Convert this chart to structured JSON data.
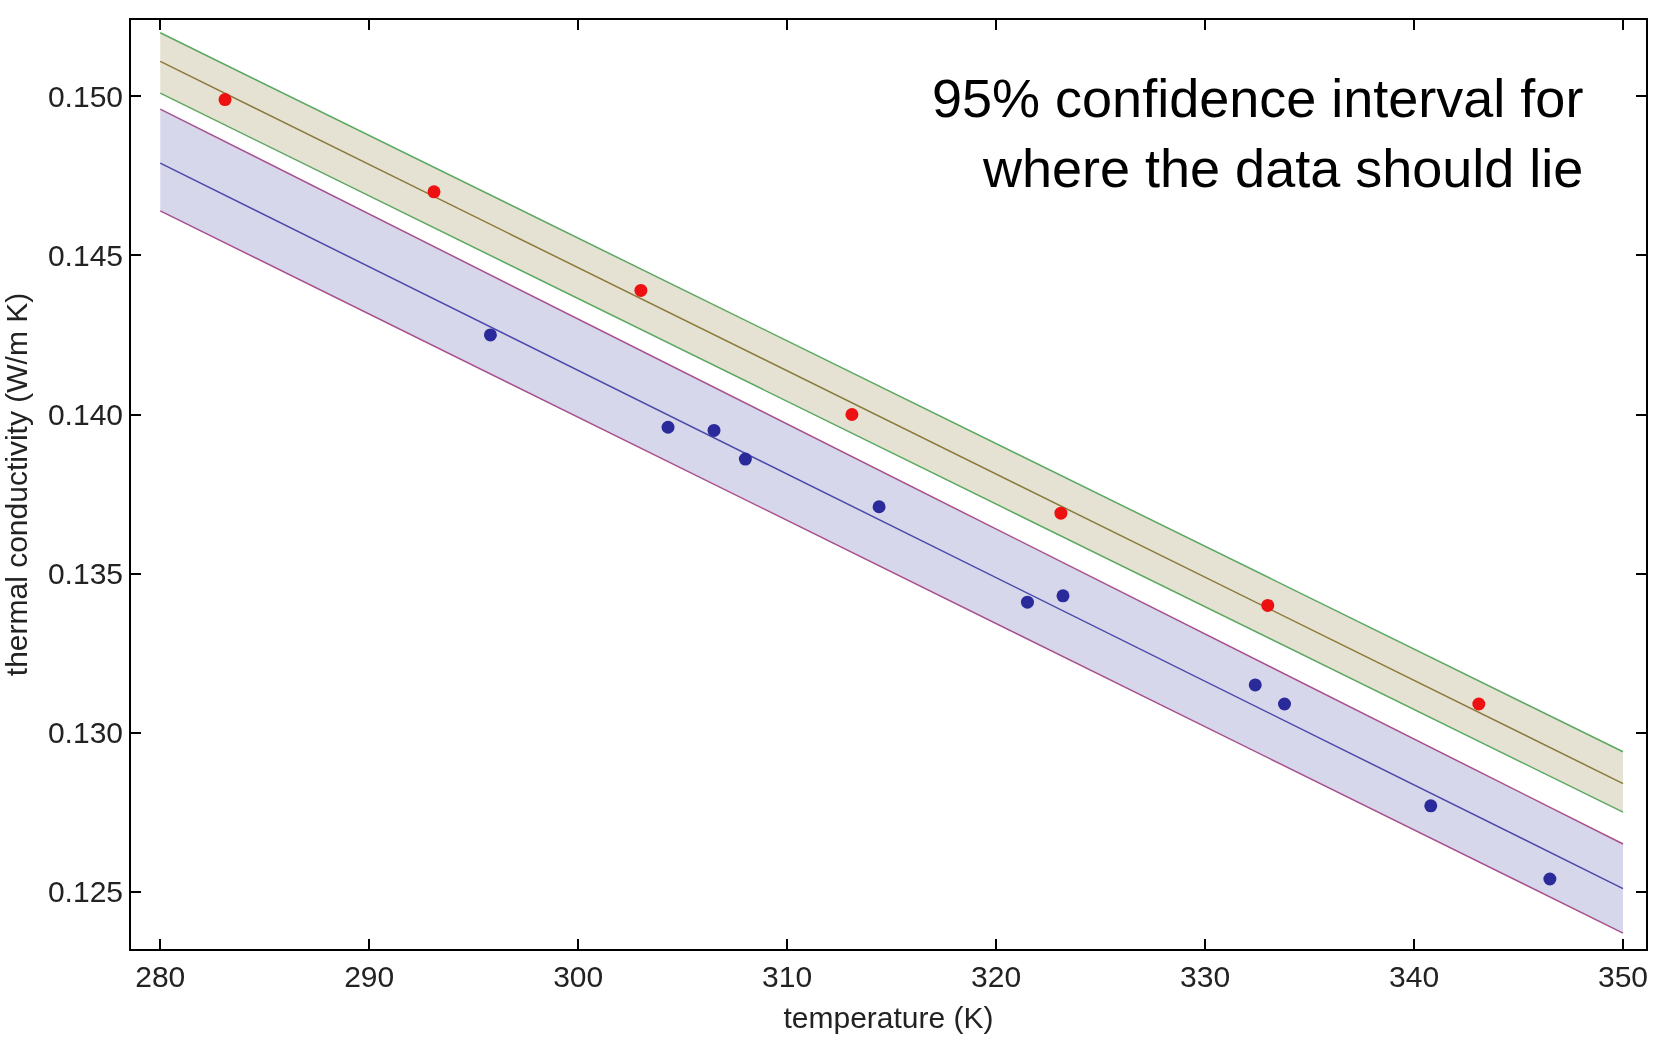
{
  "chart_data": {
    "type": "scatter",
    "xlabel": "temperature (K)",
    "ylabel": "thermal conductivity (W/m K)",
    "annotations": [
      "95% confidence interval for\nwhere the data should lie"
    ],
    "series": [
      {
        "type": "line",
        "marker": "none",
        "color": "#8a7a3a",
        "x": [
          280,
          350
        ],
        "values": [
          0.1511,
          0.1284
        ],
        "lower": [
          0.1501,
          0.1275
        ],
        "upper": [
          0.152,
          0.1294
        ]
      },
      {
        "type": "line",
        "marker": "none",
        "color": "#4a4aa8",
        "x": [
          280,
          350
        ],
        "values": [
          0.1479,
          0.1251
        ],
        "lower": [
          0.1464,
          0.1237
        ],
        "upper": [
          0.1496,
          0.1265
        ]
      },
      {
        "type": "line",
        "marker": "none",
        "color": "#5aa860",
        "x": [
          280,
          350
        ],
        "values": [
          0.152,
          0.1294
        ]
      },
      {
        "type": "line",
        "marker": "none",
        "color": "#5aa860",
        "x": [
          280,
          350
        ],
        "values": [
          0.1501,
          0.1275
        ]
      },
      {
        "type": "line",
        "marker": "none",
        "color": "#a8508c",
        "x": [
          280,
          350
        ],
        "values": [
          0.1496,
          0.1265
        ]
      },
      {
        "type": "line",
        "marker": "none",
        "color": "#a8508c",
        "x": [
          280,
          350
        ],
        "values": [
          0.1464,
          0.1237
        ]
      },
      {
        "color": "#ee1111",
        "x": [
          283.1,
          293.1,
          303.0,
          313.1,
          323.1,
          333.0,
          343.1
        ],
        "values": [
          0.1499,
          0.147,
          0.1439,
          0.14,
          0.1369,
          0.134,
          0.1309
        ]
      },
      {
        "color": "#2a2a9a",
        "x": [
          295.8,
          304.3,
          306.5,
          308.0,
          314.4,
          321.5,
          323.2,
          332.4,
          333.8,
          340.8,
          346.5
        ],
        "values": [
          0.1425,
          0.1396,
          0.1395,
          0.1386,
          0.1371,
          0.1341,
          0.1343,
          0.1315,
          0.1309,
          0.1277,
          0.1254
        ]
      }
    ],
    "marker": "circle",
    "xlim": [
      278.6,
      351.1
    ],
    "xticks": [
      280,
      290,
      300,
      310,
      320,
      330,
      340,
      350
    ],
    "ylim": [
      0.1232,
      0.1524
    ],
    "yticks": [
      {
        "value": 0.125,
        "label": "0.125"
      },
      {
        "value": 0.13,
        "label": "0.130"
      },
      {
        "value": 0.135,
        "label": "0.135"
      },
      {
        "value": 0.14,
        "label": "0.140"
      },
      {
        "value": 0.145,
        "label": "0.145"
      },
      {
        "value": 0.15,
        "label": "0.150"
      }
    ]
  }
}
